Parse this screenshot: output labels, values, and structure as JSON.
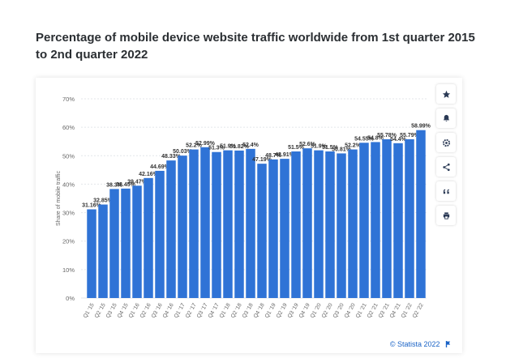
{
  "title": "Percentage of mobile device website traffic worldwide from 1st quarter 2015 to 2nd quarter 2022",
  "credit": "© Statista 2022",
  "colors": {
    "bar": "#2f73d6",
    "grid": "#e3e6ea",
    "tick": "#666666",
    "label": "#333333"
  },
  "toolbar": [
    {
      "icon": "star-icon"
    },
    {
      "icon": "bell-icon"
    },
    {
      "icon": "gear-icon"
    },
    {
      "icon": "share-icon"
    },
    {
      "icon": "quote-icon"
    },
    {
      "icon": "print-icon"
    }
  ],
  "chart_data": {
    "type": "bar",
    "title": "Percentage of mobile device website traffic worldwide from 1st quarter 2015 to 2nd quarter 2022",
    "xlabel": "",
    "ylabel": "Share of mobile traffic",
    "ylim": [
      0,
      70
    ],
    "yticks": [
      "0%",
      "10%",
      "20%",
      "30%",
      "40%",
      "50%",
      "60%",
      "70%"
    ],
    "grid": true,
    "categories": [
      "Q1 '15",
      "Q2 '15",
      "Q3 '15",
      "Q4 '15",
      "Q1 '16",
      "Q2 '16",
      "Q3 '16",
      "Q4 '16",
      "Q1 '17",
      "Q2 '17",
      "Q3 '17",
      "Q4 '17",
      "Q1 '18",
      "Q2 '18",
      "Q3 '18",
      "Q4 '18",
      "Q1 '19",
      "Q2 '19",
      "Q3 '19",
      "Q4 '19",
      "Q1 '20",
      "Q2 '20",
      "Q3 '20",
      "Q4 '20",
      "Q1 '21",
      "Q2 '21",
      "Q3 '21",
      "Q4 '21",
      "Q1 '22",
      "Q2 '22"
    ],
    "values": [
      31.16,
      32.85,
      38.3,
      38.45,
      39.47,
      42.16,
      44.69,
      48.33,
      50.03,
      52.2,
      52.99,
      51.3,
      51.9,
      51.82,
      52.4,
      47.19,
      48.7,
      48.91,
      51.5,
      52.6,
      51.9,
      51.5,
      50.81,
      52.2,
      54.55,
      54.8,
      55.78,
      54.4,
      55.79,
      58.99
    ],
    "labels": [
      "31.16%",
      "32.85%",
      "38.3%",
      "38.45%",
      "39.47%",
      "42.16%",
      "44.69%",
      "48.33%",
      "50.03%",
      "52.2%",
      "52.99%",
      "51.3%",
      "51.9%",
      "51.82%",
      "52.4%",
      "47.19%",
      "48.7%",
      "48.91%",
      "51.5%",
      "52.6%",
      "51.9%",
      "51.5%",
      "50.81%",
      "52.2%",
      "54.55%",
      "54.8%",
      "55.78%",
      "54.4%",
      "55.79%",
      "58.99%"
    ]
  }
}
